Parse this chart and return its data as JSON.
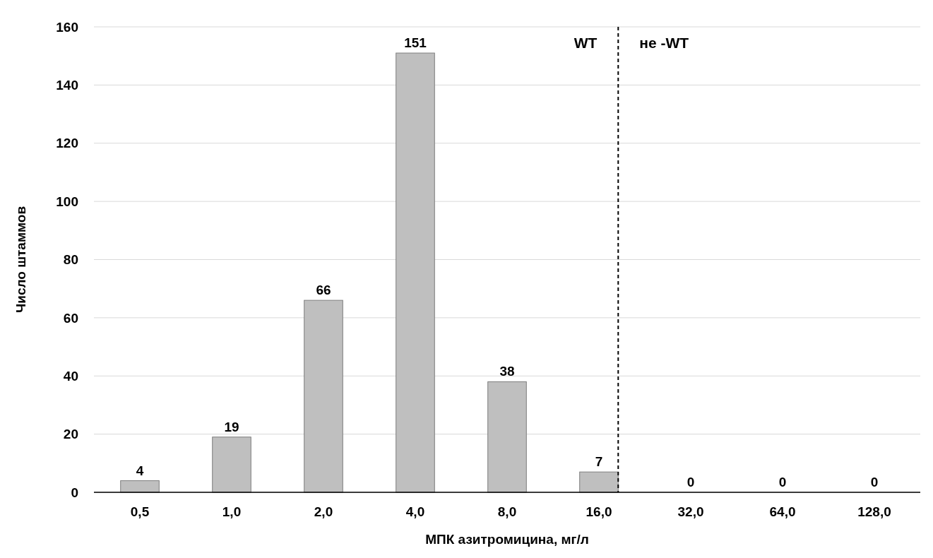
{
  "chart_data": {
    "type": "bar",
    "xlabel": "МПК азитромицина, мг/л",
    "ylabel": "Число штаммов",
    "categories": [
      "0,5",
      "1,0",
      "2,0",
      "4,0",
      "8,0",
      "16,0",
      "32,0",
      "64,0",
      "128,0"
    ],
    "values": [
      4,
      19,
      66,
      151,
      38,
      7,
      0,
      0,
      0
    ],
    "color": "#bfbfbf",
    "ylim": [
      0,
      160
    ],
    "yticks": [
      0,
      20,
      40,
      60,
      80,
      100,
      120,
      140,
      160
    ],
    "grid": "y",
    "data_labels": true,
    "ref_lines": [
      {
        "axis": "x",
        "value": "16,0",
        "line_style": "dashed",
        "color": "#000000"
      }
    ],
    "annotations": [
      "WT",
      "не -WT"
    ]
  }
}
